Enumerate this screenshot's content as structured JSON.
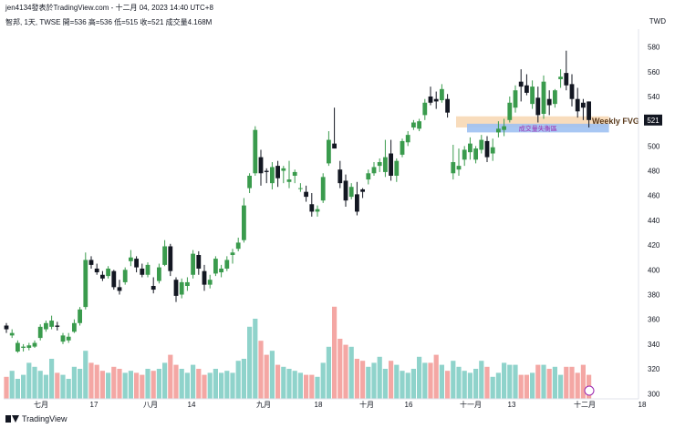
{
  "header": {
    "line1": "jen4134發表於TradingView.com - 十二月 04, 2023 14:40 UTC+8",
    "line2": "智邦, 1天, TWSE  開=536  高=536  低=515  收=521  成交量4.168M"
  },
  "currency": "TWD",
  "footer": {
    "brand": "TradingView"
  },
  "colors": {
    "up": "#26a69a",
    "down": "#131722",
    "upCandle": "#3a9b4d",
    "volUp": "#8fd3cb",
    "volDown": "#f4a7a4",
    "fvg": "#f7d6b0",
    "gap": "#9fc1f2",
    "priceTag": "#131722",
    "fvgLabel": "#5a3a1c",
    "gapLabel": "#9b27b0"
  },
  "chart_data": {
    "type": "candlestick",
    "symbol": "智邦",
    "interval": "1天",
    "exchange": "TWSE",
    "last_ohlc": {
      "open": 536,
      "high": 536,
      "low": 515,
      "close": 521,
      "volume": "4.168M"
    },
    "y_ticks": [
      300,
      320,
      340,
      360,
      380,
      400,
      420,
      440,
      460,
      480,
      500,
      520,
      540,
      560,
      580
    ],
    "ylim": [
      298,
      590
    ],
    "x_ticks": [
      "七月",
      "17",
      "八月",
      "14",
      "九月",
      "18",
      "十月",
      "16",
      "十一月",
      "13",
      "十二月",
      "18"
    ],
    "last_price_label": "521",
    "candles": [
      [
        355,
        357,
        349,
        352
      ],
      [
        347,
        352,
        345,
        349
      ],
      [
        334,
        343,
        333,
        341
      ],
      [
        337,
        340,
        334,
        338
      ],
      [
        337,
        341,
        335,
        339
      ],
      [
        338,
        343,
        337,
        341
      ],
      [
        345,
        356,
        343,
        354
      ],
      [
        352,
        359,
        350,
        357
      ],
      [
        354,
        363,
        352,
        359
      ],
      [
        355,
        358,
        351,
        354
      ],
      [
        342,
        349,
        340,
        347
      ],
      [
        343,
        349,
        341,
        346
      ],
      [
        350,
        360,
        349,
        357
      ],
      [
        357,
        370,
        355,
        368
      ],
      [
        370,
        414,
        368,
        408
      ],
      [
        408,
        411,
        401,
        404
      ],
      [
        401,
        405,
        396,
        398
      ],
      [
        396,
        399,
        391,
        393
      ],
      [
        395,
        403,
        393,
        401
      ],
      [
        399,
        400,
        384,
        386
      ],
      [
        386,
        392,
        380,
        383
      ],
      [
        390,
        402,
        388,
        400
      ],
      [
        407,
        416,
        403,
        410
      ],
      [
        409,
        411,
        398,
        402
      ],
      [
        401,
        405,
        394,
        396
      ],
      [
        396,
        406,
        394,
        404
      ],
      [
        387,
        394,
        381,
        384
      ],
      [
        391,
        405,
        389,
        402
      ],
      [
        404,
        424,
        403,
        419
      ],
      [
        419,
        421,
        395,
        399
      ],
      [
        392,
        394,
        374,
        379
      ],
      [
        380,
        393,
        377,
        390
      ],
      [
        387,
        394,
        383,
        390
      ],
      [
        396,
        416,
        393,
        413
      ],
      [
        412,
        415,
        396,
        401
      ],
      [
        399,
        404,
        383,
        388
      ],
      [
        388,
        396,
        385,
        392
      ],
      [
        397,
        411,
        395,
        409
      ],
      [
        398,
        404,
        394,
        401
      ],
      [
        401,
        411,
        399,
        408
      ],
      [
        412,
        417,
        405,
        414
      ],
      [
        417,
        426,
        415,
        422
      ],
      [
        424,
        458,
        422,
        452
      ],
      [
        466,
        478,
        462,
        476
      ],
      [
        478,
        516,
        476,
        513
      ],
      [
        491,
        497,
        468,
        478
      ],
      [
        480,
        482,
        470,
        479
      ],
      [
        470,
        487,
        465,
        483
      ],
      [
        484,
        488,
        467,
        474
      ],
      [
        480,
        484,
        470,
        482
      ],
      [
        471,
        488,
        466,
        473
      ],
      [
        476,
        481,
        470,
        479
      ],
      [
        466,
        470,
        463,
        466
      ],
      [
        463,
        468,
        455,
        459
      ],
      [
        453,
        462,
        443,
        447
      ],
      [
        447,
        452,
        443,
        449
      ],
      [
        456,
        478,
        454,
        475
      ],
      [
        486,
        512,
        484,
        505
      ],
      [
        502,
        531,
        498,
        498
      ],
      [
        481,
        488,
        466,
        470
      ],
      [
        472,
        477,
        451,
        456
      ],
      [
        459,
        470,
        457,
        467
      ],
      [
        461,
        471,
        444,
        447
      ],
      [
        465,
        466,
        458,
        463
      ],
      [
        473,
        481,
        469,
        478
      ],
      [
        478,
        487,
        476,
        483
      ],
      [
        484,
        490,
        479,
        487
      ],
      [
        479,
        505,
        475,
        491
      ],
      [
        494,
        505,
        472,
        476
      ],
      [
        476,
        490,
        471,
        488
      ],
      [
        493,
        506,
        491,
        504
      ],
      [
        503,
        512,
        500,
        509
      ],
      [
        515,
        521,
        513,
        519
      ],
      [
        514,
        522,
        512,
        520
      ],
      [
        525,
        538,
        521,
        535
      ],
      [
        540,
        548,
        533,
        535
      ],
      [
        538,
        544,
        530,
        536
      ],
      [
        537,
        550,
        535,
        546
      ],
      [
        538,
        542,
        523,
        527
      ],
      [
        478,
        501,
        473,
        487
      ],
      [
        481,
        498,
        476,
        484
      ],
      [
        489,
        500,
        484,
        497
      ],
      [
        495,
        507,
        489,
        502
      ],
      [
        489,
        500,
        486,
        498
      ],
      [
        497,
        509,
        494,
        505
      ],
      [
        504,
        508,
        487,
        491
      ],
      [
        494,
        506,
        488,
        499
      ],
      [
        511,
        520,
        507,
        514
      ],
      [
        513,
        522,
        508,
        516
      ],
      [
        521,
        540,
        519,
        535
      ],
      [
        531,
        549,
        527,
        545
      ],
      [
        552,
        562,
        536,
        548
      ],
      [
        549,
        558,
        541,
        543
      ],
      [
        534,
        553,
        530,
        548
      ],
      [
        539,
        548,
        519,
        525
      ],
      [
        526,
        557,
        522,
        552
      ],
      [
        538,
        545,
        525,
        533
      ],
      [
        534,
        546,
        531,
        545
      ],
      [
        554,
        562,
        547,
        556
      ],
      [
        559,
        577,
        545,
        549
      ],
      [
        550,
        558,
        532,
        538
      ],
      [
        538,
        547,
        523,
        528
      ],
      [
        535,
        538,
        521,
        531
      ],
      [
        536,
        536,
        515,
        521
      ]
    ],
    "volumes": [
      11,
      14,
      10,
      12,
      18,
      16,
      14,
      12,
      20,
      13,
      12,
      10,
      16,
      15,
      24,
      18,
      17,
      14,
      13,
      16,
      15,
      13,
      14,
      13,
      12,
      15,
      14,
      15,
      18,
      22,
      17,
      15,
      13,
      17,
      15,
      12,
      13,
      15,
      13,
      14,
      13,
      19,
      20,
      36,
      40,
      29,
      22,
      24,
      17,
      16,
      15,
      14,
      13,
      12,
      12,
      11,
      18,
      26,
      46,
      30,
      27,
      26,
      20,
      19,
      16,
      18,
      21,
      15,
      19,
      17,
      14,
      13,
      15,
      21,
      18,
      18,
      22,
      17,
      14,
      19,
      16,
      14,
      13,
      15,
      19,
      16,
      11,
      13,
      18,
      17,
      17,
      12,
      12,
      13,
      17,
      17,
      15,
      16,
      12,
      16,
      16,
      13,
      17,
      12
    ]
  }
}
